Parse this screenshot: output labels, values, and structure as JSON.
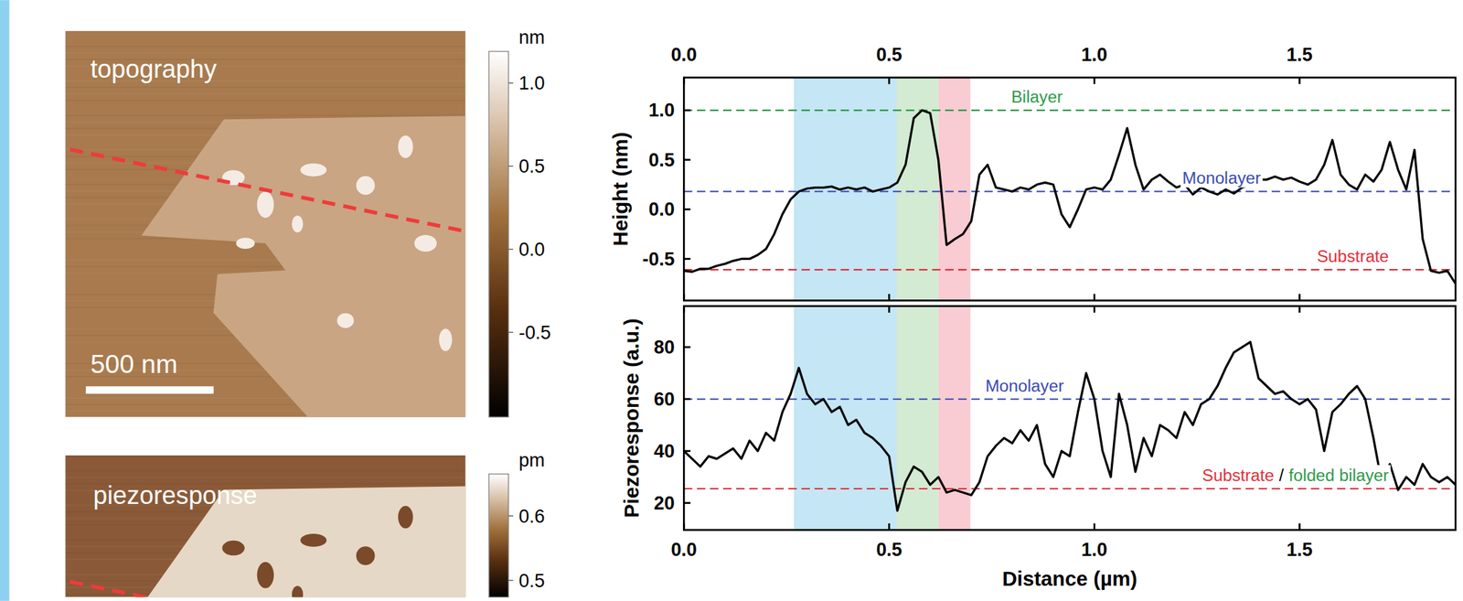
{
  "maps": [
    {
      "title": "topography",
      "width_nm": 1566,
      "scale_bar": {
        "value": 500,
        "label": "500 nm"
      },
      "colorbar": {
        "label": "nm",
        "lim": [
          -1.01,
          1.19
        ],
        "ticks": [
          {
            "value": 1,
            "label": "1.0"
          },
          0.5,
          {
            "value": 0,
            "label": "0.0"
          },
          -0.5
        ]
      }
    },
    {
      "title": "piezoresponse",
      "colorbar": {
        "label": "pm",
        "lim": [
          0.474,
          0.665
        ],
        "ticks": [
          0.6,
          0.5
        ]
      }
    }
  ],
  "chart_data": [
    {
      "type": "line",
      "y_label": "Height (nm)",
      "x": [
        0,
        0.02,
        0.04,
        0.06,
        0.08,
        0.1,
        0.12,
        0.14,
        0.16,
        0.18,
        0.2,
        0.22,
        0.24,
        0.26,
        0.28,
        0.3,
        0.32,
        0.34,
        0.36,
        0.38,
        0.4,
        0.42,
        0.44,
        0.46,
        0.48,
        0.5,
        0.52,
        0.54,
        0.56,
        0.58,
        0.6,
        0.62,
        0.64,
        0.66,
        0.68,
        0.7,
        0.72,
        0.74,
        0.76,
        0.78,
        0.8,
        0.82,
        0.84,
        0.86,
        0.88,
        0.9,
        0.92,
        0.94,
        0.96,
        0.98,
        1,
        1.02,
        1.04,
        1.06,
        1.08,
        1.1,
        1.12,
        1.14,
        1.16,
        1.18,
        1.2,
        1.22,
        1.24,
        1.26,
        1.28,
        1.3,
        1.32,
        1.34,
        1.36,
        1.38,
        1.4,
        1.42,
        1.44,
        1.46,
        1.48,
        1.5,
        1.52,
        1.54,
        1.56,
        1.58,
        1.6,
        1.62,
        1.64,
        1.66,
        1.68,
        1.7,
        1.72,
        1.74,
        1.76,
        1.78,
        1.8,
        1.82,
        1.84,
        1.86,
        1.88
      ],
      "series": [
        {
          "color": "#000000",
          "values": [
            -0.62,
            -0.63,
            -0.6,
            -0.6,
            -0.57,
            -0.55,
            -0.52,
            -0.5,
            -0.5,
            -0.46,
            -0.4,
            -0.25,
            -0.05,
            0.1,
            0.18,
            0.21,
            0.22,
            0.22,
            0.23,
            0.2,
            0.22,
            0.2,
            0.22,
            0.18,
            0.2,
            0.22,
            0.27,
            0.45,
            0.92,
            1.0,
            0.97,
            0.5,
            -0.36,
            -0.3,
            -0.25,
            -0.12,
            0.35,
            0.45,
            0.22,
            0.2,
            0.18,
            0.22,
            0.2,
            0.25,
            0.27,
            0.25,
            -0.05,
            -0.18,
            0.0,
            0.2,
            0.22,
            0.2,
            0.3,
            0.55,
            0.82,
            0.45,
            0.2,
            0.3,
            0.35,
            0.28,
            0.22,
            0.25,
            0.15,
            0.22,
            0.18,
            0.15,
            0.2,
            0.16,
            0.22,
            0.25,
            0.3,
            0.3,
            0.33,
            0.3,
            0.32,
            0.28,
            0.25,
            0.3,
            0.45,
            0.7,
            0.35,
            0.25,
            0.2,
            0.35,
            0.28,
            0.4,
            0.68,
            0.4,
            0.2,
            0.6,
            -0.3,
            -0.62,
            -0.64,
            -0.62,
            -0.75
          ]
        }
      ],
      "xlim": [
        0,
        1.88
      ],
      "xticks": [
        {
          "value": 0,
          "label": "0.0"
        },
        0.5,
        {
          "value": 1,
          "label": "1.0"
        },
        1.5
      ],
      "ylim": [
        -0.92,
        1.33
      ],
      "yticks": [
        -0.5,
        {
          "value": 0,
          "label": "0.0"
        },
        0.5,
        {
          "value": 1,
          "label": "1.0"
        }
      ],
      "regions": [
        {
          "from": 0.268,
          "to": 0.518,
          "color": "#c4e6f5"
        },
        {
          "from": 0.518,
          "to": 0.62,
          "color": "#d3ead3"
        },
        {
          "from": 0.62,
          "to": 0.698,
          "color": "#f8ccd2"
        }
      ],
      "reference_lines": [
        {
          "value": 1.0,
          "label": "Bilayer",
          "color": "#2e9a4a",
          "label_x": 0.86
        },
        {
          "value": 0.18,
          "label": "Monolayer",
          "color": "#3a4bb0",
          "label_x": 1.31
        },
        {
          "value": -0.61,
          "label": "Substrate",
          "color": "#e0303a",
          "label_x": 1.63
        }
      ]
    },
    {
      "type": "line",
      "y_label": "Piezoresponse (a.u.)",
      "x_label": "Distance (µm)",
      "x": [
        0,
        0.02,
        0.04,
        0.06,
        0.08,
        0.1,
        0.12,
        0.14,
        0.16,
        0.18,
        0.2,
        0.22,
        0.24,
        0.26,
        0.28,
        0.3,
        0.32,
        0.34,
        0.36,
        0.38,
        0.4,
        0.42,
        0.44,
        0.46,
        0.48,
        0.5,
        0.52,
        0.54,
        0.56,
        0.58,
        0.6,
        0.62,
        0.64,
        0.66,
        0.68,
        0.7,
        0.72,
        0.74,
        0.76,
        0.78,
        0.8,
        0.82,
        0.84,
        0.86,
        0.88,
        0.9,
        0.92,
        0.94,
        0.96,
        0.98,
        1,
        1.02,
        1.04,
        1.06,
        1.08,
        1.1,
        1.12,
        1.14,
        1.16,
        1.18,
        1.2,
        1.22,
        1.24,
        1.26,
        1.28,
        1.3,
        1.32,
        1.34,
        1.36,
        1.38,
        1.4,
        1.42,
        1.44,
        1.46,
        1.48,
        1.5,
        1.52,
        1.54,
        1.56,
        1.58,
        1.6,
        1.62,
        1.64,
        1.66,
        1.68,
        1.7,
        1.72,
        1.74,
        1.76,
        1.78,
        1.8,
        1.82,
        1.84,
        1.86,
        1.88
      ],
      "series": [
        {
          "color": "#000000",
          "values": [
            40,
            37,
            34,
            38,
            37,
            39,
            41,
            37,
            44,
            40,
            47,
            44,
            55,
            62,
            72,
            62,
            58,
            60,
            55,
            57,
            50,
            52,
            47,
            45,
            42,
            38,
            17,
            28,
            34,
            32,
            27,
            30,
            24,
            25,
            24,
            23,
            28,
            38,
            42,
            45,
            43,
            48,
            44,
            50,
            35,
            30,
            40,
            38,
            55,
            70,
            60,
            40,
            30,
            62,
            50,
            32,
            45,
            38,
            50,
            48,
            45,
            55,
            50,
            58,
            60,
            65,
            72,
            78,
            80,
            82,
            68,
            65,
            62,
            63,
            60,
            58,
            60,
            56,
            40,
            55,
            58,
            62,
            65,
            60,
            45,
            28,
            35,
            25,
            30,
            27,
            35,
            30,
            28,
            30,
            27
          ]
        }
      ],
      "xlim": [
        0,
        1.88
      ],
      "xticks": [
        {
          "value": 0,
          "label": "0.0"
        },
        0.5,
        {
          "value": 1,
          "label": "1.0"
        },
        1.5
      ],
      "ylim": [
        9.6,
        95.8
      ],
      "yticks": [
        20,
        40,
        60,
        80
      ],
      "regions": [
        {
          "from": 0.268,
          "to": 0.518,
          "color": "#c4e6f5"
        },
        {
          "from": 0.518,
          "to": 0.62,
          "color": "#d3ead3"
        },
        {
          "from": 0.62,
          "to": 0.698,
          "color": "#f8ccd2"
        }
      ],
      "reference_lines": [
        {
          "value": 60,
          "label": "Monolayer",
          "color": "#3a4bb0",
          "label_x": 0.83
        },
        {
          "value": 25.5,
          "label": [
            {
              "text": "Substrate",
              "color": "#e0303a"
            },
            {
              "text": "/",
              "color": "#000000"
            },
            {
              "text": "folded bilayer",
              "color": "#2e9a4a"
            }
          ],
          "color": "#e0303a",
          "label_x": 1.49
        }
      ]
    }
  ]
}
